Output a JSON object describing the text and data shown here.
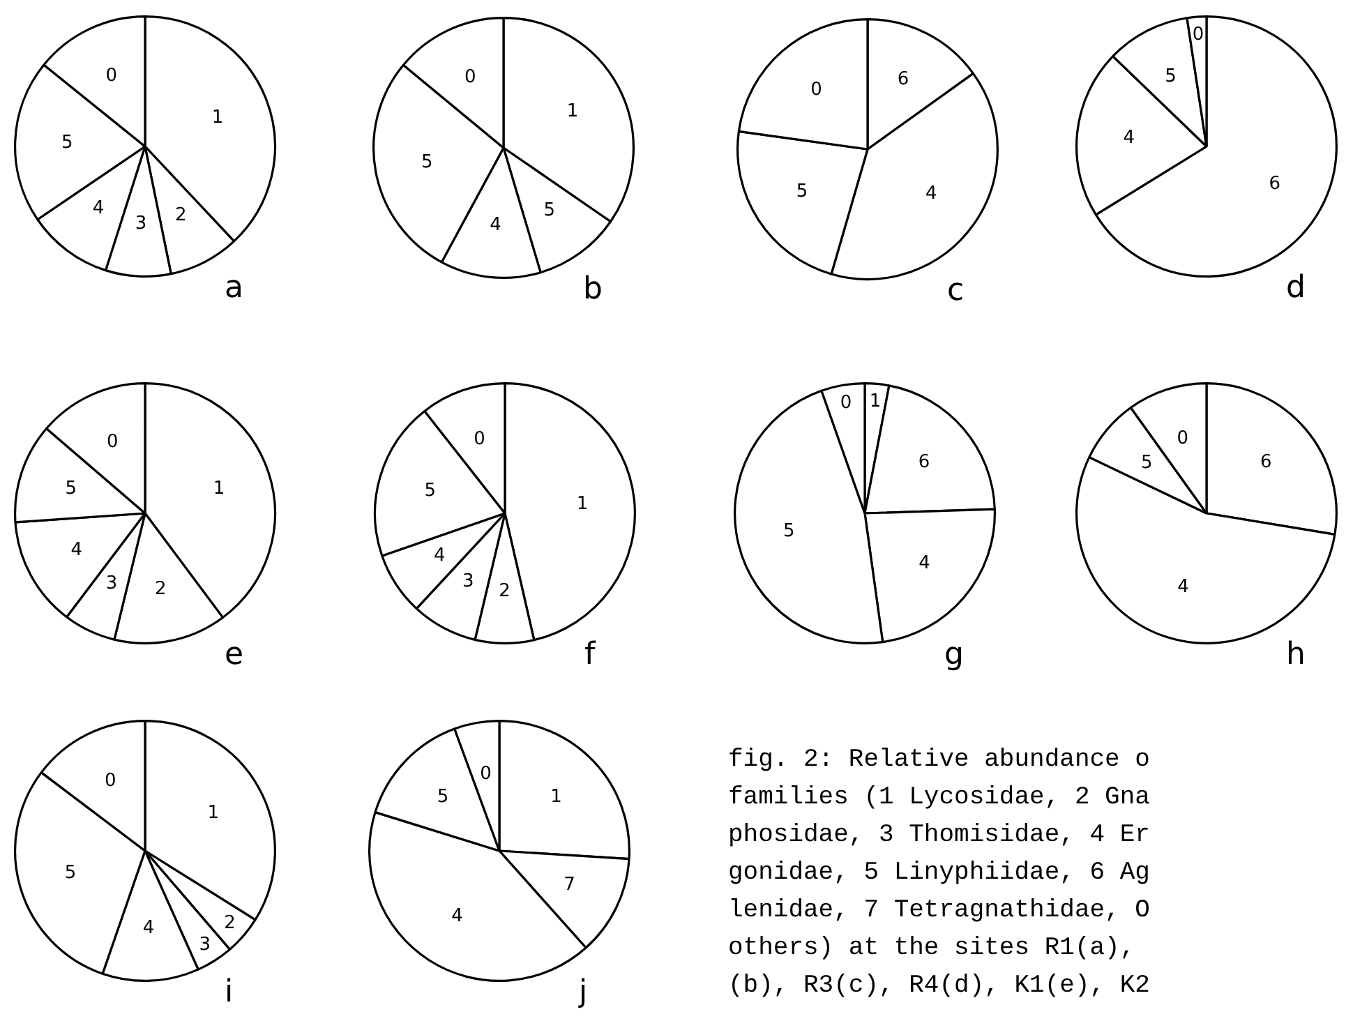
{
  "chart_data": [
    {
      "type": "pie",
      "title": "a",
      "categories": [
        "1",
        "2",
        "3",
        "4",
        "5",
        "0"
      ],
      "values": [
        38,
        8.8,
        8.1,
        10.6,
        20.3,
        14.2
      ],
      "colors": [
        "#ffffff",
        "#ffffff",
        "#ffffff",
        "#ffffff",
        "#ffffff",
        "#ffffff"
      ]
    },
    {
      "type": "pie",
      "title": "b",
      "categories": [
        "1",
        "5",
        "4",
        "5",
        "0"
      ],
      "values": [
        34.6,
        10.8,
        12.5,
        28.1,
        14.0
      ],
      "colors": [
        "#ffffff",
        "#ffffff",
        "#ffffff",
        "#ffffff",
        "#ffffff"
      ]
    },
    {
      "type": "pie",
      "title": "c",
      "categories": [
        "6",
        "4",
        "5",
        "0"
      ],
      "values": [
        15.1,
        39.4,
        22.7,
        22.8
      ],
      "colors": [
        "#ffffff",
        "#ffffff",
        "#ffffff",
        "#ffffff"
      ]
    },
    {
      "type": "pie",
      "title": "d",
      "categories": [
        "6",
        "4",
        "5",
        "0"
      ],
      "values": [
        66.2,
        21.0,
        10.4,
        2.4
      ],
      "colors": [
        "#ffffff",
        "#ffffff",
        "#ffffff",
        "#ffffff"
      ]
    },
    {
      "type": "pie",
      "title": "e",
      "categories": [
        "1",
        "2",
        "3",
        "4",
        "5",
        "0"
      ],
      "values": [
        39.8,
        14.0,
        6.5,
        13.6,
        12.4,
        13.7
      ],
      "colors": [
        "#ffffff",
        "#ffffff",
        "#ffffff",
        "#ffffff",
        "#ffffff",
        "#ffffff"
      ]
    },
    {
      "type": "pie",
      "title": "f",
      "categories": [
        "1",
        "2",
        "3",
        "4",
        "5",
        "0"
      ],
      "values": [
        46.4,
        7.3,
        8.2,
        7.8,
        19.7,
        10.6
      ],
      "colors": [
        "#ffffff",
        "#ffffff",
        "#ffffff",
        "#ffffff",
        "#ffffff",
        "#ffffff"
      ]
    },
    {
      "type": "pie",
      "title": "g",
      "categories": [
        "1",
        "6",
        "4",
        "5",
        "0"
      ],
      "values": [
        3.0,
        21.5,
        23.3,
        46.8,
        5.4
      ],
      "colors": [
        "#ffffff",
        "#ffffff",
        "#ffffff",
        "#ffffff",
        "#ffffff"
      ]
    },
    {
      "type": "pie",
      "title": "h",
      "categories": [
        "6",
        "4",
        "5",
        "0"
      ],
      "values": [
        27.6,
        54.5,
        8.0,
        9.9
      ],
      "colors": [
        "#ffffff",
        "#ffffff",
        "#ffffff",
        "#ffffff"
      ]
    },
    {
      "type": "pie",
      "title": "i",
      "categories": [
        "1",
        "2",
        "3",
        "4",
        "5",
        "0"
      ],
      "values": [
        33.9,
        4.8,
        4.6,
        12.0,
        30.0,
        14.7
      ],
      "colors": [
        "#ffffff",
        "#ffffff",
        "#ffffff",
        "#ffffff",
        "#ffffff",
        "#ffffff"
      ]
    },
    {
      "type": "pie",
      "title": "j",
      "categories": [
        "1",
        "7",
        "4",
        "5",
        "0"
      ],
      "values": [
        26.0,
        12.4,
        41.4,
        14.6,
        5.6
      ],
      "colors": [
        "#ffffff",
        "#ffffff",
        "#ffffff",
        "#ffffff",
        "#ffffff"
      ]
    },
    {
      "type": "other",
      "annotations": [
        "fig. 2: Relative abundance o",
        "families (1 Lycosidae, 2 Gna",
        "phosidae, 3 Thomisidae, 4 Er",
        "gonidae, 5 Linyphiidae, 6 Ag",
        "lenidae, 7 Tetragnathidae, O",
        "others) at the sites R1(a),",
        "(b), R3(c), R4(d), K1(e), K2"
      ]
    }
  ]
}
